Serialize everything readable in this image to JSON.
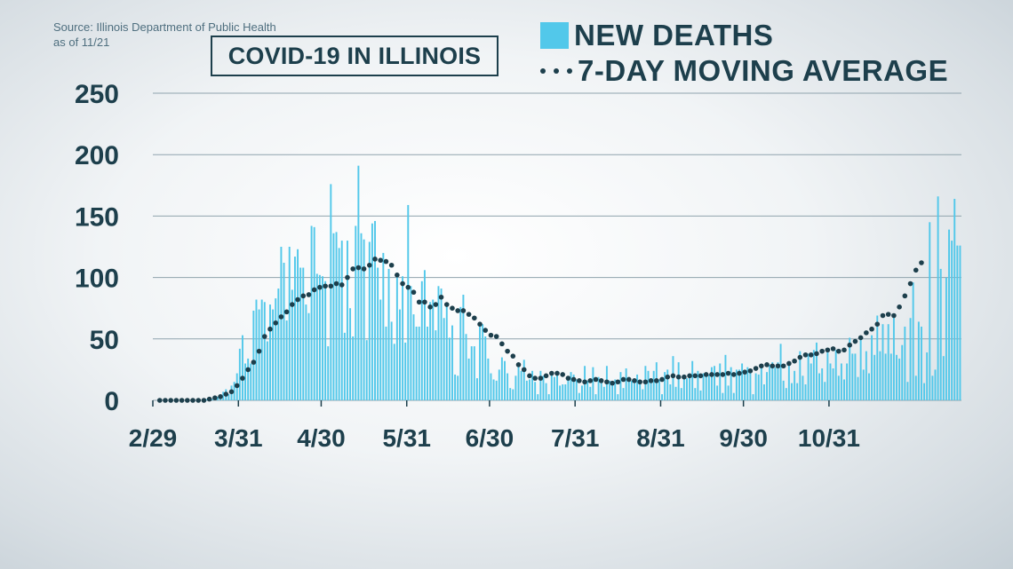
{
  "source": {
    "line1": "Source: Illinois Department of Public Health",
    "line2": "as of 11/21"
  },
  "colors": {
    "bar": "#52c8ea",
    "average": "#1d3f4c",
    "text": "#1d3f4c",
    "grid": "#8fa3ad"
  },
  "chart_data": {
    "type": "bar",
    "title": "COVID-19 IN ILLINOIS",
    "legend": [
      "NEW DEATHS",
      "7-DAY MOVING AVERAGE"
    ],
    "legend_position": "top-right",
    "xlabel": "",
    "ylabel": "",
    "ylim": [
      0,
      250
    ],
    "y_ticks": [
      0,
      50,
      100,
      150,
      200,
      250
    ],
    "x_tick_labels": [
      "2/29",
      "3/31",
      "4/30",
      "5/31",
      "6/30",
      "7/31",
      "8/31",
      "9/30",
      "10/31"
    ],
    "x_tick_day_index": [
      0,
      31,
      61,
      92,
      122,
      153,
      184,
      214,
      245
    ],
    "grid": true,
    "start_date": "2020-02-29",
    "series": [
      {
        "name": "NEW DEATHS",
        "type": "bar",
        "values": [
          0,
          0,
          0,
          0,
          0,
          0,
          0,
          0,
          0,
          0,
          0,
          0,
          0,
          0,
          0,
          0,
          0,
          0,
          0,
          1,
          1,
          1,
          1,
          3,
          4,
          7,
          9,
          5,
          12,
          15,
          22,
          42,
          53,
          30,
          34,
          30,
          73,
          82,
          74,
          82,
          80,
          48,
          78,
          74,
          83,
          91,
          125,
          112,
          65,
          125,
          90,
          117,
          123,
          108,
          108,
          78,
          71,
          142,
          141,
          103,
          102,
          101,
          97,
          44,
          176,
          136,
          137,
          124,
          130,
          55,
          130,
          75,
          52,
          142,
          191,
          136,
          131,
          49,
          129,
          144,
          146,
          108,
          82,
          120,
          60,
          107,
          64,
          46,
          100,
          74,
          101,
          47,
          159,
          93,
          70,
          60,
          60,
          97,
          106,
          60,
          80,
          82,
          57,
          93,
          91,
          67,
          77,
          51,
          61,
          21,
          20,
          76,
          86,
          54,
          34,
          44,
          44,
          18,
          61,
          62,
          52,
          34,
          22,
          17,
          16,
          25,
          35,
          32,
          22,
          10,
          9,
          20,
          28,
          24,
          33,
          16,
          17,
          24,
          15,
          5,
          24,
          20,
          14,
          5,
          22,
          19,
          24,
          12,
          13,
          13,
          17,
          23,
          21,
          17,
          6,
          12,
          28,
          16,
          11,
          27,
          5,
          19,
          16,
          11,
          28,
          16,
          15,
          17,
          5,
          23,
          10,
          26,
          19,
          16,
          14,
          21,
          17,
          9,
          28,
          24,
          18,
          24,
          31,
          17,
          5,
          23,
          25,
          13,
          36,
          11,
          31,
          10,
          21,
          18,
          20,
          32,
          10,
          24,
          8,
          22,
          20,
          21,
          27,
          28,
          12,
          30,
          6,
          37,
          12,
          27,
          6,
          25,
          25,
          30,
          22,
          27,
          24,
          5,
          22,
          21,
          28,
          13,
          23,
          29,
          31,
          27,
          31,
          46,
          16,
          10,
          29,
          14,
          24,
          14,
          40,
          20,
          13,
          38,
          30,
          41,
          47,
          22,
          26,
          15,
          39,
          30,
          26,
          41,
          20,
          30,
          17,
          30,
          51,
          38,
          38,
          19,
          52,
          25,
          40,
          22,
          53,
          37,
          69,
          40,
          62,
          38,
          62,
          38,
          68,
          37,
          34,
          45,
          60,
          15,
          67,
          96,
          20,
          64,
          60,
          14,
          39,
          145,
          20,
          25,
          166,
          107,
          36,
          100,
          139,
          130,
          164,
          126,
          126
        ]
      },
      {
        "name": "7-DAY MOVING AVERAGE",
        "type": "dotted-line",
        "points": [
          [
            2,
            0
          ],
          [
            4,
            0
          ],
          [
            6,
            0
          ],
          [
            8,
            0
          ],
          [
            10,
            0
          ],
          [
            12,
            0
          ],
          [
            14,
            0
          ],
          [
            16,
            0
          ],
          [
            18,
            0
          ],
          [
            20,
            1
          ],
          [
            22,
            2
          ],
          [
            24,
            3
          ],
          [
            26,
            5
          ],
          [
            28,
            7
          ],
          [
            30,
            12
          ],
          [
            32,
            18
          ],
          [
            34,
            25
          ],
          [
            36,
            31
          ],
          [
            38,
            40
          ],
          [
            40,
            52
          ],
          [
            42,
            58
          ],
          [
            44,
            63
          ],
          [
            46,
            68
          ],
          [
            48,
            72
          ],
          [
            50,
            78
          ],
          [
            52,
            82
          ],
          [
            54,
            85
          ],
          [
            56,
            86
          ],
          [
            58,
            90
          ],
          [
            60,
            92
          ],
          [
            62,
            93
          ],
          [
            64,
            93
          ],
          [
            66,
            95
          ],
          [
            68,
            94
          ],
          [
            70,
            100
          ],
          [
            72,
            107
          ],
          [
            74,
            108
          ],
          [
            76,
            107
          ],
          [
            78,
            110
          ],
          [
            80,
            115
          ],
          [
            82,
            114
          ],
          [
            84,
            113
          ],
          [
            86,
            110
          ],
          [
            88,
            102
          ],
          [
            90,
            95
          ],
          [
            92,
            92
          ],
          [
            94,
            88
          ],
          [
            96,
            80
          ],
          [
            98,
            80
          ],
          [
            100,
            76
          ],
          [
            102,
            78
          ],
          [
            104,
            84
          ],
          [
            106,
            78
          ],
          [
            108,
            75
          ],
          [
            110,
            73
          ],
          [
            112,
            73
          ],
          [
            114,
            70
          ],
          [
            116,
            67
          ],
          [
            118,
            62
          ],
          [
            120,
            57
          ],
          [
            122,
            53
          ],
          [
            124,
            52
          ],
          [
            126,
            46
          ],
          [
            128,
            40
          ],
          [
            130,
            36
          ],
          [
            132,
            29
          ],
          [
            134,
            25
          ],
          [
            136,
            20
          ],
          [
            138,
            18
          ],
          [
            140,
            18
          ],
          [
            142,
            20
          ],
          [
            144,
            22
          ],
          [
            146,
            22
          ],
          [
            148,
            21
          ],
          [
            150,
            18
          ],
          [
            152,
            17
          ],
          [
            154,
            16
          ],
          [
            156,
            15
          ],
          [
            158,
            16
          ],
          [
            160,
            17
          ],
          [
            162,
            16
          ],
          [
            164,
            15
          ],
          [
            166,
            14
          ],
          [
            168,
            15
          ],
          [
            170,
            17
          ],
          [
            172,
            17
          ],
          [
            174,
            16
          ],
          [
            176,
            15
          ],
          [
            178,
            15
          ],
          [
            180,
            16
          ],
          [
            182,
            16
          ],
          [
            184,
            17
          ],
          [
            186,
            19
          ],
          [
            188,
            20
          ],
          [
            190,
            19
          ],
          [
            192,
            19
          ],
          [
            194,
            20
          ],
          [
            196,
            20
          ],
          [
            198,
            20
          ],
          [
            200,
            21
          ],
          [
            202,
            21
          ],
          [
            204,
            21
          ],
          [
            206,
            21
          ],
          [
            208,
            22
          ],
          [
            210,
            21
          ],
          [
            212,
            22
          ],
          [
            214,
            23
          ],
          [
            216,
            24
          ],
          [
            218,
            26
          ],
          [
            220,
            28
          ],
          [
            222,
            29
          ],
          [
            224,
            28
          ],
          [
            226,
            28
          ],
          [
            228,
            28
          ],
          [
            230,
            30
          ],
          [
            232,
            32
          ],
          [
            234,
            35
          ],
          [
            236,
            37
          ],
          [
            238,
            37
          ],
          [
            240,
            38
          ],
          [
            242,
            40
          ],
          [
            244,
            41
          ],
          [
            246,
            42
          ],
          [
            248,
            40
          ],
          [
            250,
            41
          ],
          [
            252,
            45
          ],
          [
            254,
            48
          ],
          [
            256,
            51
          ],
          [
            258,
            55
          ],
          [
            260,
            58
          ],
          [
            262,
            62
          ],
          [
            264,
            69
          ],
          [
            266,
            70
          ],
          [
            268,
            69
          ],
          [
            270,
            76
          ],
          [
            272,
            85
          ],
          [
            274,
            95
          ],
          [
            276,
            106
          ],
          [
            278,
            112
          ]
        ]
      }
    ]
  }
}
